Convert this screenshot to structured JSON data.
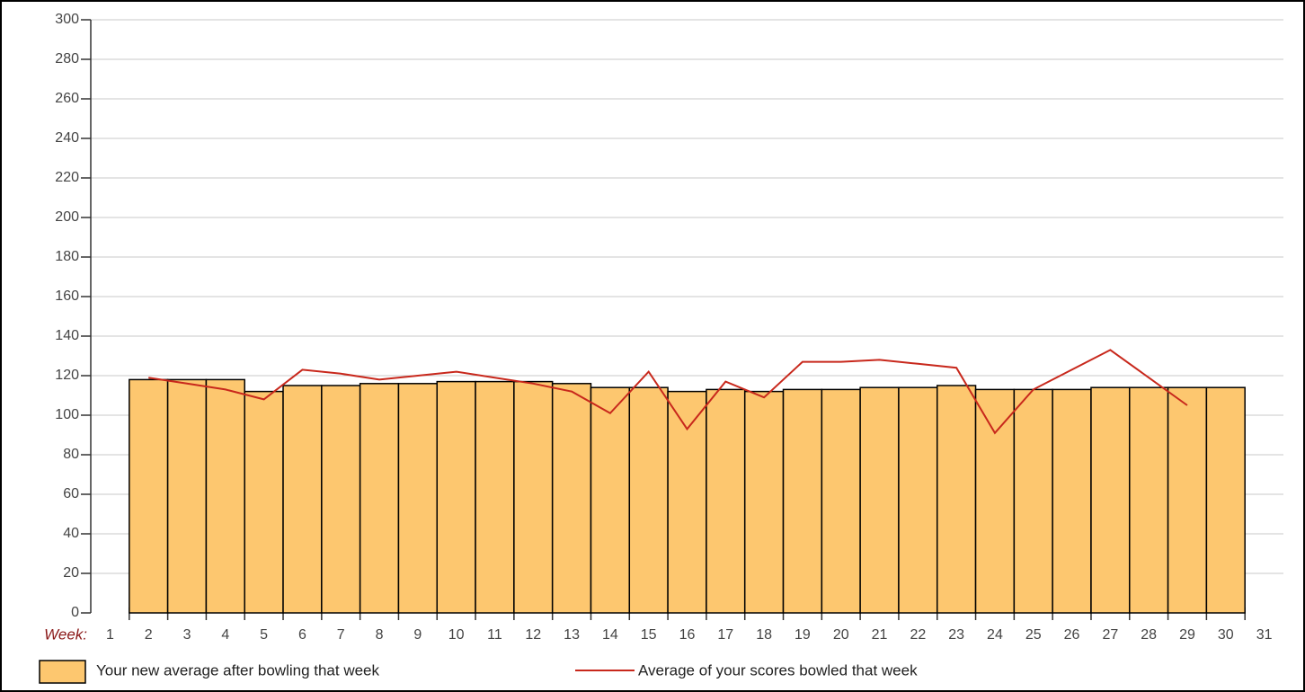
{
  "chart_data": {
    "type": "bar",
    "x_label": "Week:",
    "categories": [
      "1",
      "2",
      "3",
      "4",
      "5",
      "6",
      "7",
      "8",
      "9",
      "10",
      "11",
      "12",
      "13",
      "14",
      "15",
      "16",
      "17",
      "18",
      "19",
      "20",
      "21",
      "22",
      "23",
      "24",
      "25",
      "26",
      "27",
      "28",
      "29",
      "30",
      "31"
    ],
    "series": [
      {
        "name": "Your new average after bowling that week",
        "type": "bar",
        "color": "#fdc76f",
        "values": [
          0,
          118,
          118,
          118,
          112,
          115,
          115,
          116,
          116,
          117,
          117,
          117,
          116,
          114,
          114,
          112,
          113,
          112,
          113,
          113,
          114,
          114,
          115,
          113,
          113,
          113,
          114,
          114,
          114,
          114,
          0
        ]
      },
      {
        "name": "Average of your scores bowled that week",
        "type": "line",
        "color": "#c8281c",
        "values": [
          null,
          119,
          116,
          113,
          108,
          123,
          121,
          118,
          120,
          122,
          119,
          116,
          112,
          101,
          122,
          93,
          117,
          109,
          127,
          127,
          128,
          126,
          124,
          91,
          113,
          123,
          133,
          119,
          105,
          null,
          null
        ]
      }
    ],
    "ylim": [
      0,
      300
    ],
    "yticks": [
      0,
      20,
      40,
      60,
      80,
      100,
      120,
      140,
      160,
      180,
      200,
      220,
      240,
      260,
      280,
      300
    ],
    "grid": true
  }
}
